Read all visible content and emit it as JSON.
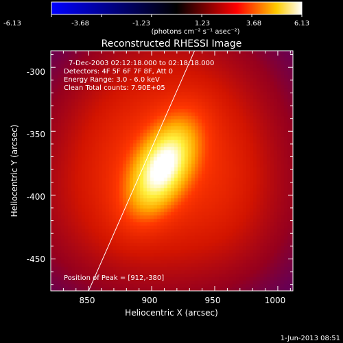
{
  "colorbar": {
    "tick_labels": [
      "-6.13",
      "-3.68",
      "-1.23",
      "1.23",
      "3.68",
      "6.13"
    ],
    "range": [
      -6.13,
      6.13
    ],
    "units_label": "(photons cm⁻² s⁻¹ asec⁻²)",
    "colormap": [
      "#0000ff",
      "#000000",
      "#ff0000",
      "#ffff00",
      "#ffffff"
    ]
  },
  "chart_data": {
    "type": "heatmap",
    "title": "Reconstructed RHESSI Image",
    "xlabel": "Heliocentric X (arcsec)",
    "ylabel": "Heliocentric Y (arcsec)",
    "xlim": [
      820,
      1012
    ],
    "ylim": [
      -475,
      -287
    ],
    "x_ticks": [
      850,
      900,
      950,
      1000
    ],
    "y_ticks": [
      -300,
      -350,
      -400,
      -450
    ],
    "info_lines": [
      "7-Dec-2003 02:12:18.000 to 02:18:18.000",
      "Detectors: 4F 5F 6F 7F 8F, Att 0",
      "Energy Range: 3.0 - 6.0 keV",
      "Clean     Total counts: 7.90E+05"
    ],
    "peak_text": "Position of Peak = [912,-380]",
    "peak": [
      912,
      -380
    ],
    "limb_line": [
      [
        850,
        -475
      ],
      [
        934,
        -287
      ]
    ],
    "sources": [
      {
        "x": 909,
        "y": -378,
        "sx": 14,
        "sy": 26,
        "angle_deg": 28,
        "amp": 1.0
      },
      {
        "x": 918,
        "y": -345,
        "sx": 40,
        "sy": 45,
        "angle_deg": 0,
        "amp": 0.22
      },
      {
        "x": 903,
        "y": -412,
        "sx": 55,
        "sy": 38,
        "angle_deg": 0,
        "amp": 0.18
      },
      {
        "x": 915,
        "y": -375,
        "sx": 75,
        "sy": 70,
        "angle_deg": 0,
        "amp": 0.14
      },
      {
        "x": 870,
        "y": -368,
        "sx": 28,
        "sy": 40,
        "angle_deg": 0,
        "amp": 0.1
      },
      {
        "x": 960,
        "y": -385,
        "sx": 22,
        "sy": 38,
        "angle_deg": 0,
        "amp": 0.08
      }
    ]
  },
  "footer": {
    "timestamp": "1-Jun-2013 08:51"
  }
}
